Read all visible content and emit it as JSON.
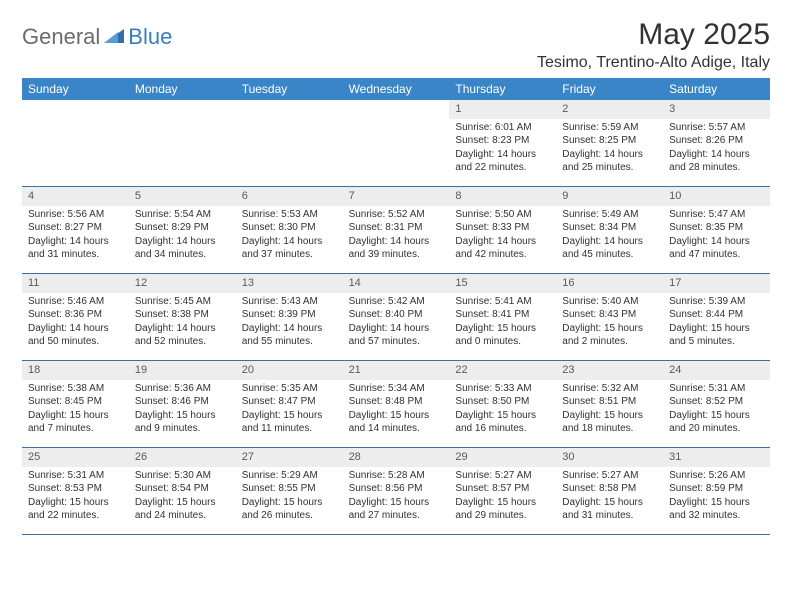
{
  "logo": {
    "part1": "General",
    "part2": "Blue"
  },
  "title": "May 2025",
  "location": "Tesimo, Trentino-Alto Adige, Italy",
  "colors": {
    "header_bg": "#3a85c7",
    "header_text": "#ffffff",
    "daynum_bg": "#ededed",
    "daynum_text": "#5a5a5a",
    "body_text": "#323232",
    "week_divider": "#3a6fa0",
    "logo_gray": "#6c6c6c",
    "logo_blue": "#3a7cc0",
    "page_bg": "#ffffff"
  },
  "fonts": {
    "title_size_pt": 22,
    "location_size_pt": 12,
    "weekday_size_pt": 9,
    "daynum_size_pt": 8,
    "body_size_pt": 7.5
  },
  "weekdays": [
    "Sunday",
    "Monday",
    "Tuesday",
    "Wednesday",
    "Thursday",
    "Friday",
    "Saturday"
  ],
  "weeks": [
    [
      {
        "n": "",
        "sr": "",
        "ss": "",
        "dl": ""
      },
      {
        "n": "",
        "sr": "",
        "ss": "",
        "dl": ""
      },
      {
        "n": "",
        "sr": "",
        "ss": "",
        "dl": ""
      },
      {
        "n": "",
        "sr": "",
        "ss": "",
        "dl": ""
      },
      {
        "n": "1",
        "sr": "Sunrise: 6:01 AM",
        "ss": "Sunset: 8:23 PM",
        "dl": "Daylight: 14 hours and 22 minutes."
      },
      {
        "n": "2",
        "sr": "Sunrise: 5:59 AM",
        "ss": "Sunset: 8:25 PM",
        "dl": "Daylight: 14 hours and 25 minutes."
      },
      {
        "n": "3",
        "sr": "Sunrise: 5:57 AM",
        "ss": "Sunset: 8:26 PM",
        "dl": "Daylight: 14 hours and 28 minutes."
      }
    ],
    [
      {
        "n": "4",
        "sr": "Sunrise: 5:56 AM",
        "ss": "Sunset: 8:27 PM",
        "dl": "Daylight: 14 hours and 31 minutes."
      },
      {
        "n": "5",
        "sr": "Sunrise: 5:54 AM",
        "ss": "Sunset: 8:29 PM",
        "dl": "Daylight: 14 hours and 34 minutes."
      },
      {
        "n": "6",
        "sr": "Sunrise: 5:53 AM",
        "ss": "Sunset: 8:30 PM",
        "dl": "Daylight: 14 hours and 37 minutes."
      },
      {
        "n": "7",
        "sr": "Sunrise: 5:52 AM",
        "ss": "Sunset: 8:31 PM",
        "dl": "Daylight: 14 hours and 39 minutes."
      },
      {
        "n": "8",
        "sr": "Sunrise: 5:50 AM",
        "ss": "Sunset: 8:33 PM",
        "dl": "Daylight: 14 hours and 42 minutes."
      },
      {
        "n": "9",
        "sr": "Sunrise: 5:49 AM",
        "ss": "Sunset: 8:34 PM",
        "dl": "Daylight: 14 hours and 45 minutes."
      },
      {
        "n": "10",
        "sr": "Sunrise: 5:47 AM",
        "ss": "Sunset: 8:35 PM",
        "dl": "Daylight: 14 hours and 47 minutes."
      }
    ],
    [
      {
        "n": "11",
        "sr": "Sunrise: 5:46 AM",
        "ss": "Sunset: 8:36 PM",
        "dl": "Daylight: 14 hours and 50 minutes."
      },
      {
        "n": "12",
        "sr": "Sunrise: 5:45 AM",
        "ss": "Sunset: 8:38 PM",
        "dl": "Daylight: 14 hours and 52 minutes."
      },
      {
        "n": "13",
        "sr": "Sunrise: 5:43 AM",
        "ss": "Sunset: 8:39 PM",
        "dl": "Daylight: 14 hours and 55 minutes."
      },
      {
        "n": "14",
        "sr": "Sunrise: 5:42 AM",
        "ss": "Sunset: 8:40 PM",
        "dl": "Daylight: 14 hours and 57 minutes."
      },
      {
        "n": "15",
        "sr": "Sunrise: 5:41 AM",
        "ss": "Sunset: 8:41 PM",
        "dl": "Daylight: 15 hours and 0 minutes."
      },
      {
        "n": "16",
        "sr": "Sunrise: 5:40 AM",
        "ss": "Sunset: 8:43 PM",
        "dl": "Daylight: 15 hours and 2 minutes."
      },
      {
        "n": "17",
        "sr": "Sunrise: 5:39 AM",
        "ss": "Sunset: 8:44 PM",
        "dl": "Daylight: 15 hours and 5 minutes."
      }
    ],
    [
      {
        "n": "18",
        "sr": "Sunrise: 5:38 AM",
        "ss": "Sunset: 8:45 PM",
        "dl": "Daylight: 15 hours and 7 minutes."
      },
      {
        "n": "19",
        "sr": "Sunrise: 5:36 AM",
        "ss": "Sunset: 8:46 PM",
        "dl": "Daylight: 15 hours and 9 minutes."
      },
      {
        "n": "20",
        "sr": "Sunrise: 5:35 AM",
        "ss": "Sunset: 8:47 PM",
        "dl": "Daylight: 15 hours and 11 minutes."
      },
      {
        "n": "21",
        "sr": "Sunrise: 5:34 AM",
        "ss": "Sunset: 8:48 PM",
        "dl": "Daylight: 15 hours and 14 minutes."
      },
      {
        "n": "22",
        "sr": "Sunrise: 5:33 AM",
        "ss": "Sunset: 8:50 PM",
        "dl": "Daylight: 15 hours and 16 minutes."
      },
      {
        "n": "23",
        "sr": "Sunrise: 5:32 AM",
        "ss": "Sunset: 8:51 PM",
        "dl": "Daylight: 15 hours and 18 minutes."
      },
      {
        "n": "24",
        "sr": "Sunrise: 5:31 AM",
        "ss": "Sunset: 8:52 PM",
        "dl": "Daylight: 15 hours and 20 minutes."
      }
    ],
    [
      {
        "n": "25",
        "sr": "Sunrise: 5:31 AM",
        "ss": "Sunset: 8:53 PM",
        "dl": "Daylight: 15 hours and 22 minutes."
      },
      {
        "n": "26",
        "sr": "Sunrise: 5:30 AM",
        "ss": "Sunset: 8:54 PM",
        "dl": "Daylight: 15 hours and 24 minutes."
      },
      {
        "n": "27",
        "sr": "Sunrise: 5:29 AM",
        "ss": "Sunset: 8:55 PM",
        "dl": "Daylight: 15 hours and 26 minutes."
      },
      {
        "n": "28",
        "sr": "Sunrise: 5:28 AM",
        "ss": "Sunset: 8:56 PM",
        "dl": "Daylight: 15 hours and 27 minutes."
      },
      {
        "n": "29",
        "sr": "Sunrise: 5:27 AM",
        "ss": "Sunset: 8:57 PM",
        "dl": "Daylight: 15 hours and 29 minutes."
      },
      {
        "n": "30",
        "sr": "Sunrise: 5:27 AM",
        "ss": "Sunset: 8:58 PM",
        "dl": "Daylight: 15 hours and 31 minutes."
      },
      {
        "n": "31",
        "sr": "Sunrise: 5:26 AM",
        "ss": "Sunset: 8:59 PM",
        "dl": "Daylight: 15 hours and 32 minutes."
      }
    ]
  ]
}
